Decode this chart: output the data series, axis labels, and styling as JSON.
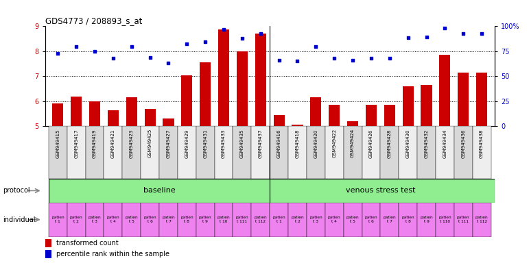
{
  "title": "GDS4773 / 208893_s_at",
  "gsm_labels": [
    "GSM949415",
    "GSM949417",
    "GSM949419",
    "GSM949421",
    "GSM949423",
    "GSM949425",
    "GSM949427",
    "GSM949429",
    "GSM949431",
    "GSM949433",
    "GSM949435",
    "GSM949437",
    "GSM949416",
    "GSM949418",
    "GSM949420",
    "GSM949422",
    "GSM949424",
    "GSM949426",
    "GSM949428",
    "GSM949430",
    "GSM949432",
    "GSM949434",
    "GSM949436",
    "GSM949438"
  ],
  "bar_values": [
    5.9,
    6.2,
    6.0,
    5.65,
    6.15,
    5.7,
    5.3,
    7.05,
    7.55,
    8.88,
    8.0,
    8.7,
    5.45,
    5.05,
    6.15,
    5.85,
    5.2,
    5.85,
    5.85,
    6.6,
    6.65,
    7.85,
    7.15,
    7.15
  ],
  "dot_values": [
    7.92,
    8.2,
    8.0,
    7.72,
    8.18,
    7.76,
    7.52,
    8.3,
    8.37,
    8.88,
    8.52,
    8.7,
    7.65,
    7.62,
    8.18,
    7.72,
    7.65,
    7.73,
    7.73,
    8.55,
    8.58,
    8.92,
    8.72,
    8.72
  ],
  "ylim": [
    5.0,
    9.0
  ],
  "yticks": [
    5,
    6,
    7,
    8,
    9
  ],
  "right_yticks": [
    0,
    25,
    50,
    75,
    100
  ],
  "right_ytick_labels": [
    "0",
    "25",
    "50",
    "75",
    "100%"
  ],
  "bar_color": "#cc0000",
  "dot_color": "#0000cc",
  "baseline_color": "#90EE90",
  "stress_color": "#90EE90",
  "individual_color": "#EE82EE",
  "n_baseline": 12,
  "n_stress": 12,
  "baseline_label": "baseline",
  "stress_label": "venous stress test",
  "protocol_label": "protocol",
  "individual_label": "individual",
  "indiv_labels_b": [
    "patien\nt 1",
    "patien\nt 2",
    "patien\nt 3",
    "patien\nt 4",
    "patien\nt 5",
    "patien\nt 6",
    "patien\nt 7",
    "patien\nt 8",
    "patien\nt 9",
    "patien\nt 10",
    "patien\nt 111",
    "patien\nt 112"
  ],
  "indiv_labels_s": [
    "patien\nt 1",
    "patien\nt 2",
    "patien\nt 3",
    "patien\nt 4",
    "patien\nt 5",
    "patien\nt 6",
    "patien\nt 7",
    "patien\nt 8",
    "patien\nt 9",
    "patien\nt 110",
    "patien\nt 111",
    "patien\nt 112"
  ],
  "legend_bar_label": "transformed count",
  "legend_dot_label": "percentile rank within the sample",
  "arrow_color": "#888888"
}
